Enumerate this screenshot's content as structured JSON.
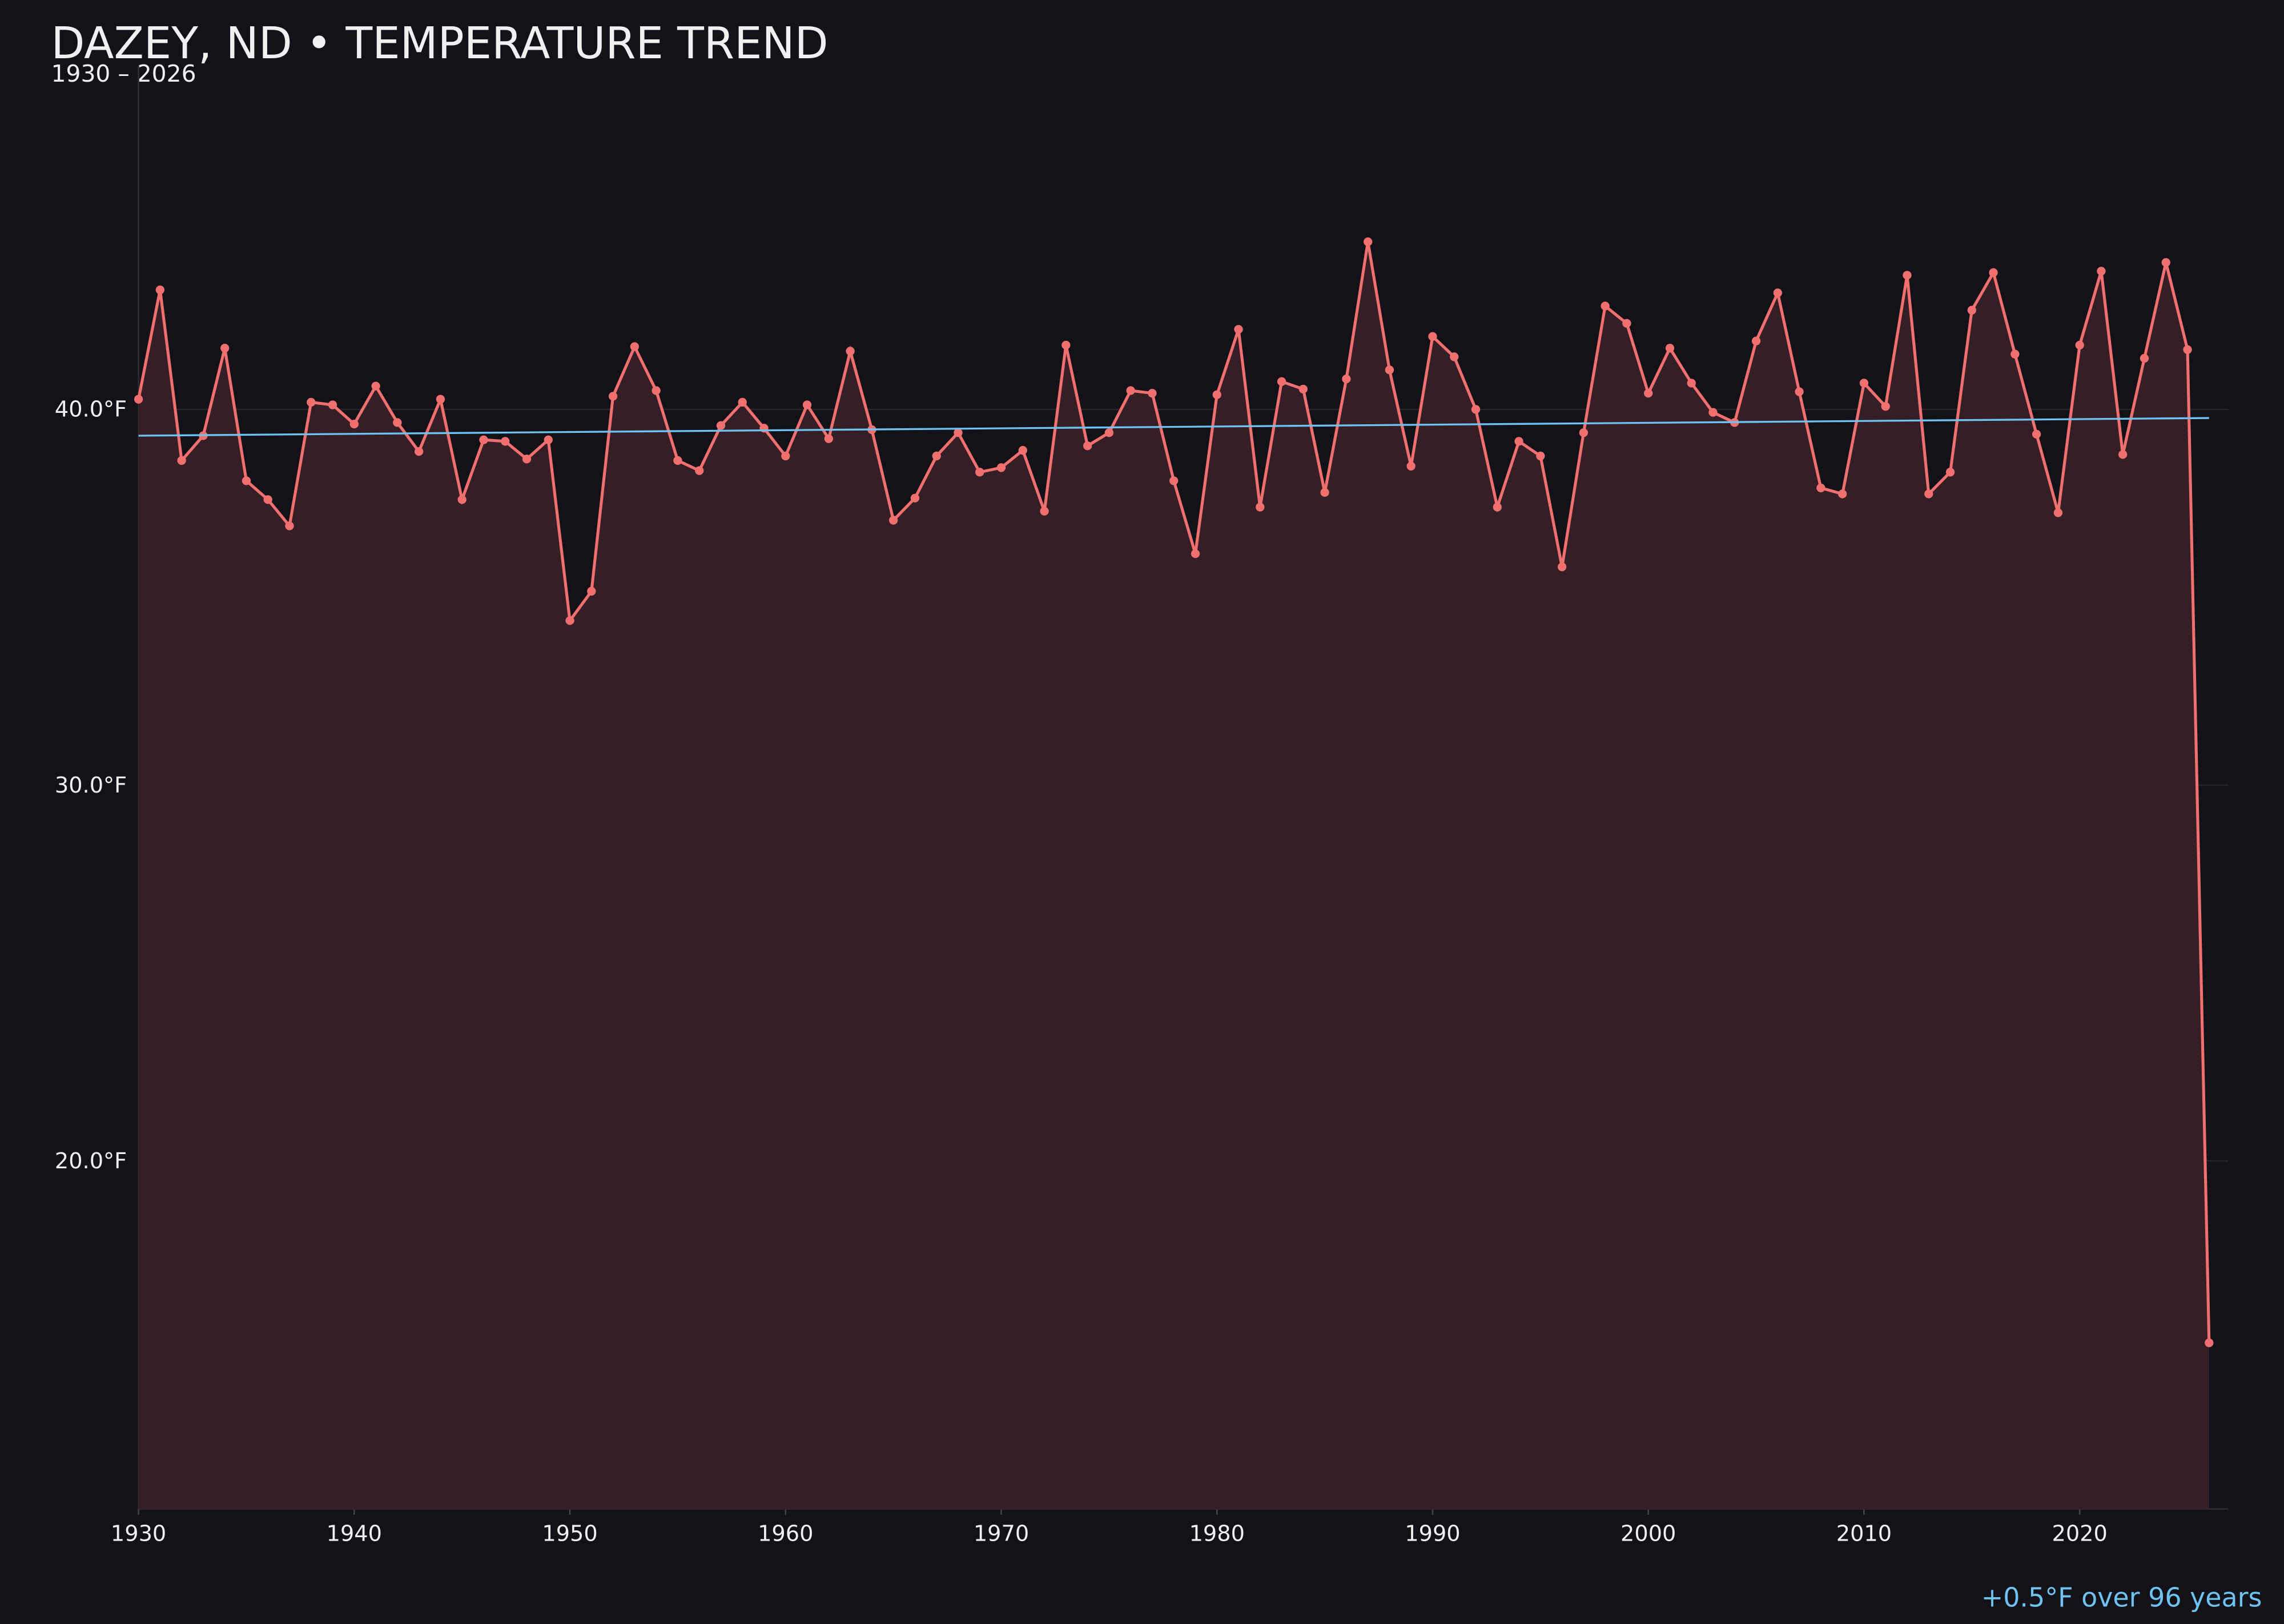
{
  "chart_data": {
    "type": "line",
    "title": "DAZEY, ND • TEMPERATURE TREND",
    "subtitle": "1930 – 2026",
    "annotation": "+0.5°F over 96 years",
    "x": [
      1930,
      1931,
      1932,
      1933,
      1934,
      1935,
      1936,
      1937,
      1938,
      1939,
      1940,
      1941,
      1942,
      1943,
      1944,
      1945,
      1946,
      1947,
      1948,
      1949,
      1950,
      1951,
      1952,
      1953,
      1954,
      1955,
      1956,
      1957,
      1958,
      1959,
      1960,
      1961,
      1962,
      1963,
      1964,
      1965,
      1966,
      1967,
      1968,
      1969,
      1970,
      1971,
      1972,
      1973,
      1974,
      1975,
      1976,
      1977,
      1978,
      1979,
      1980,
      1981,
      1982,
      1983,
      1984,
      1985,
      1986,
      1987,
      1988,
      1989,
      1990,
      1991,
      1992,
      1993,
      1994,
      1995,
      1996,
      1997,
      1998,
      1999,
      2000,
      2001,
      2002,
      2003,
      2004,
      2005,
      2006,
      2007,
      2008,
      2009,
      2010,
      2011,
      2012,
      2013,
      2014,
      2015,
      2016,
      2017,
      2018,
      2019,
      2020,
      2021,
      2022,
      2023,
      2024,
      2025,
      2026
    ],
    "series": [
      {
        "color": "#f07070",
        "fill": "#351e25",
        "values": [
          40.27,
          43.18,
          38.64,
          39.3,
          41.63,
          38.1,
          37.6,
          36.9,
          40.19,
          40.12,
          39.61,
          40.62,
          39.65,
          38.88,
          40.27,
          37.6,
          39.19,
          39.15,
          38.68,
          39.19,
          34.38,
          35.16,
          40.35,
          41.67,
          40.5,
          38.64,
          38.37,
          39.57,
          40.19,
          39.5,
          38.76,
          40.12,
          39.22,
          41.55,
          39.46,
          37.05,
          37.64,
          38.76,
          39.38,
          38.33,
          38.45,
          38.91,
          37.29,
          41.71,
          39.03,
          39.38,
          40.5,
          40.43,
          38.1,
          36.16,
          40.39,
          42.13,
          37.4,
          40.74,
          40.54,
          37.79,
          40.81,
          44.46,
          41.05,
          38.49,
          41.94,
          41.4,
          40.0,
          37.4,
          39.15,
          38.76,
          35.81,
          39.38,
          42.75,
          42.29,
          40.43,
          41.63,
          40.7,
          39.92,
          39.65,
          41.82,
          43.1,
          40.47,
          37.91,
          37.75,
          40.7,
          40.08,
          43.57,
          37.75,
          38.33,
          42.64,
          43.64,
          41.47,
          39.34,
          37.25,
          41.71,
          43.68,
          38.8,
          41.36,
          43.91,
          41.59,
          15.16
        ]
      }
    ],
    "trend": {
      "x": [
        1930,
        2026
      ],
      "values": [
        39.3,
        39.77
      ],
      "color": "#6ec3f0"
    },
    "xlim": [
      1930,
      2026.9
    ],
    "ylim": [
      10.74,
      49.15
    ],
    "xticks": [
      1930,
      1940,
      1950,
      1960,
      1970,
      1980,
      1990,
      2000,
      2010,
      2020
    ],
    "yticks": [
      {
        "value": 20,
        "label": "20.0°F"
      },
      {
        "value": 30,
        "label": "30.0°F"
      },
      {
        "value": 40,
        "label": "40.0°F"
      }
    ],
    "grid": true
  }
}
